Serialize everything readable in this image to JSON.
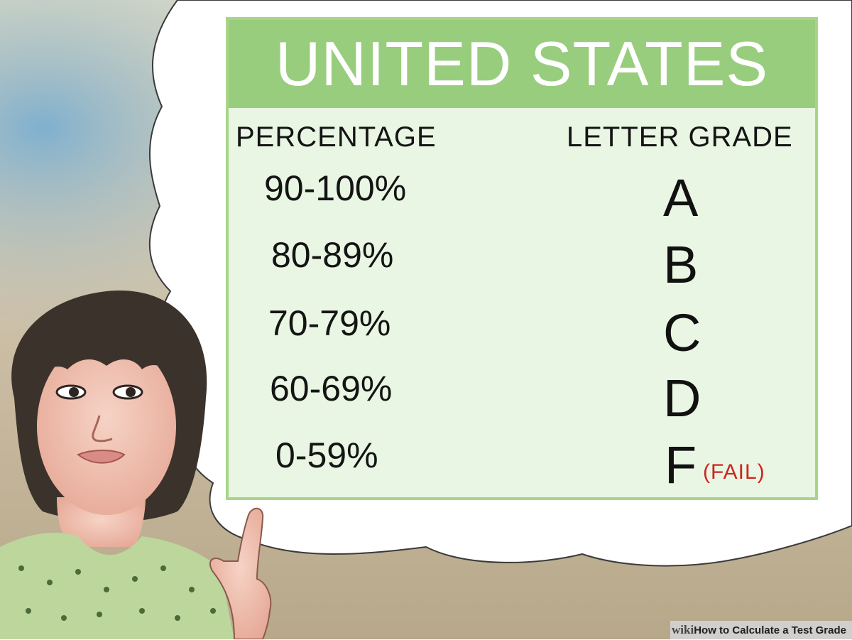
{
  "table": {
    "title": "UNITED STATES",
    "headers": {
      "percentage": "PERCENTAGE",
      "letter": "LETTER GRADE"
    },
    "rows": [
      {
        "percentage": "90-100%",
        "letter": "A"
      },
      {
        "percentage": "80-89%",
        "letter": "B"
      },
      {
        "percentage": "70-79%",
        "letter": "C"
      },
      {
        "percentage": "60-69%",
        "letter": "D"
      },
      {
        "percentage": "0-59%",
        "letter": "F",
        "note": "(FAIL)"
      }
    ]
  },
  "footer": {
    "wiki": "wiki",
    "how": "How",
    "rest": " to Calculate a Test Grade"
  },
  "colors": {
    "banner": "#99cd7e",
    "table_bg": "#e9f6e3",
    "fail_note": "#d0231f"
  }
}
